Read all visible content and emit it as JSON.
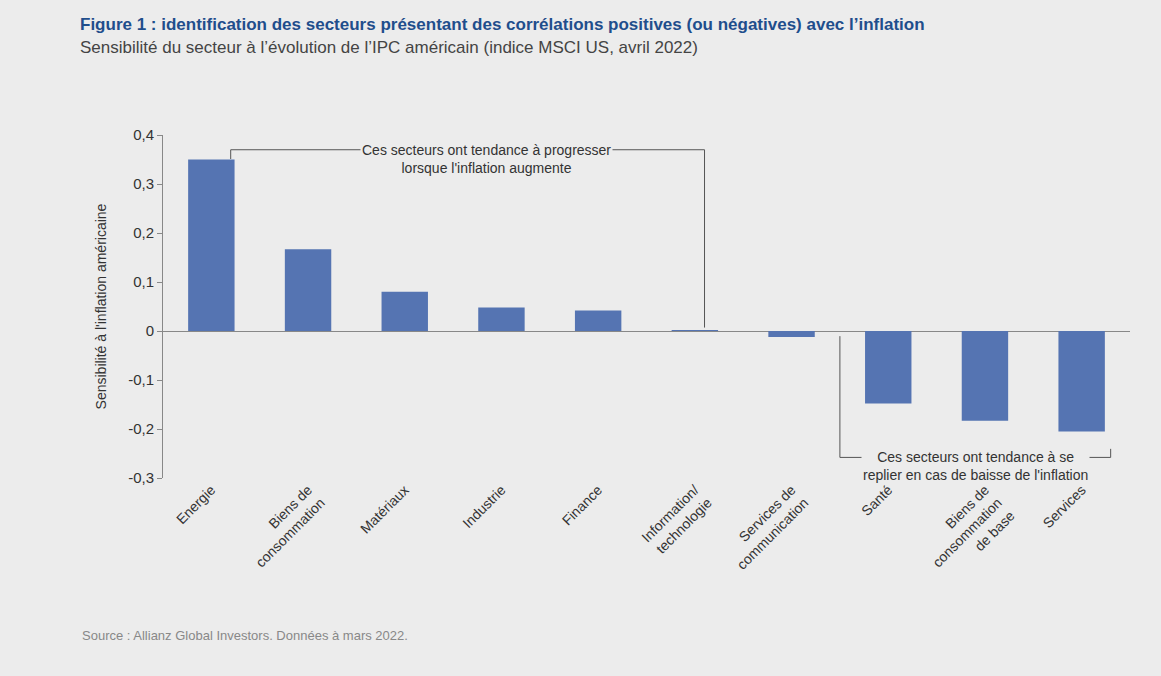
{
  "chart_data": {
    "type": "bar",
    "title": "Figure 1 : identification des secteurs présentant des corrélations positives (ou négatives) avec l’inflation",
    "subtitle": "Sensibilité du secteur à l’évolution de l’IPC américain (indice MSCI US, avril 2022)",
    "y_label": "Sensibilité à l'inflation américaine",
    "categories": [
      "Energie",
      "Biens de consommation",
      "Matériaux",
      "Industrie",
      "Finance",
      "Information/technologie",
      "Services de communication",
      "Santé",
      "Biens de consommation de base",
      "Services"
    ],
    "values": [
      0.35,
      0.167,
      0.08,
      0.048,
      0.042,
      0.002,
      -0.012,
      -0.148,
      -0.183,
      -0.205
    ],
    "color": "#5574b2",
    "ylim": [
      -0.3,
      0.4
    ],
    "yticks": [
      {
        "value": -0.3,
        "label": "-0,3"
      },
      {
        "value": -0.2,
        "label": "-0,2"
      },
      {
        "value": -0.1,
        "label": "-0,1"
      },
      0,
      {
        "value": 0.1,
        "label": "0,1"
      },
      {
        "value": 0.2,
        "label": "0,2"
      },
      {
        "value": 0.3,
        "label": "0,3"
      },
      {
        "value": 0.4,
        "label": "0,4"
      }
    ],
    "grid": false,
    "annotations": [
      {
        "text": "Ces secteurs ont tendance à progresser\nlorsque l'inflation augmente"
      },
      {
        "text": "Ces secteurs ont tendance à se\nreplier en cas de baisse de l'inflation"
      }
    ],
    "source": "Source : Allianz Global Investors. Données à mars 2022."
  }
}
